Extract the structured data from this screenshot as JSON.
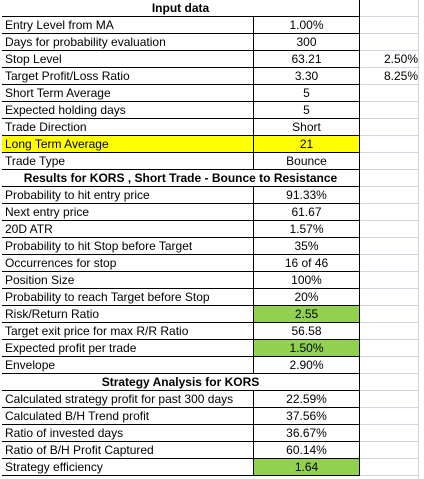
{
  "colors": {
    "highlight_yellow": "#ffff00",
    "highlight_green": "#92d050",
    "gridline": "#d0d7e5"
  },
  "rows": [
    {
      "type": "header",
      "label": "Input data"
    },
    {
      "label": "Entry Level from MA",
      "value": "1.00%"
    },
    {
      "label": "Days for probability evaluation",
      "value": "300"
    },
    {
      "label": "Stop Level",
      "value": "63.21",
      "extra": "2.50%"
    },
    {
      "label": "Target Profit/Loss Ratio",
      "value": "3.30",
      "extra": "8.25%"
    },
    {
      "label": "Short Term Average",
      "value": "5"
    },
    {
      "label": "Expected holding days",
      "value": "5"
    },
    {
      "label": "Trade Direction",
      "value": "Short"
    },
    {
      "label": "Long Term Average",
      "value": "21",
      "highlight": "yellow"
    },
    {
      "label": "Trade Type",
      "value": "Bounce"
    },
    {
      "type": "header",
      "label": "Results for KORS , Short Trade - Bounce to Resistance"
    },
    {
      "label": "Probability to hit entry price",
      "value": "91.33%"
    },
    {
      "label": "Next entry price",
      "value": "61.67"
    },
    {
      "label": "20D ATR",
      "value": "1.57%"
    },
    {
      "label": "Probability to hit Stop before Target",
      "value": "35%"
    },
    {
      "label": "Occurrences for stop",
      "value": "16 of 46"
    },
    {
      "label": "Position Size",
      "value": "100%"
    },
    {
      "label": "Probability to reach Target before Stop",
      "value": "20%"
    },
    {
      "label": "Risk/Return Ratio",
      "value": "2.55",
      "value_highlight": "green"
    },
    {
      "label": "Target exit price for max R/R Ratio",
      "value": "56.58"
    },
    {
      "label": "Expected profit per trade",
      "value": "1.50%",
      "value_highlight": "green"
    },
    {
      "label": "Envelope",
      "value": "2.90%"
    },
    {
      "type": "header",
      "label": "Strategy Analysis for KORS"
    },
    {
      "label": "Calculated strategy profit for past 300 days",
      "value": "22.59%"
    },
    {
      "label": "Calculated B/H Trend profit",
      "value": "37.56%"
    },
    {
      "label": "Ratio of invested days",
      "value": "36.67%"
    },
    {
      "label": "Ratio of B/H Profit Captured",
      "value": "60.14%"
    },
    {
      "label": "Strategy efficiency",
      "value": "1.64",
      "value_highlight": "green"
    }
  ]
}
